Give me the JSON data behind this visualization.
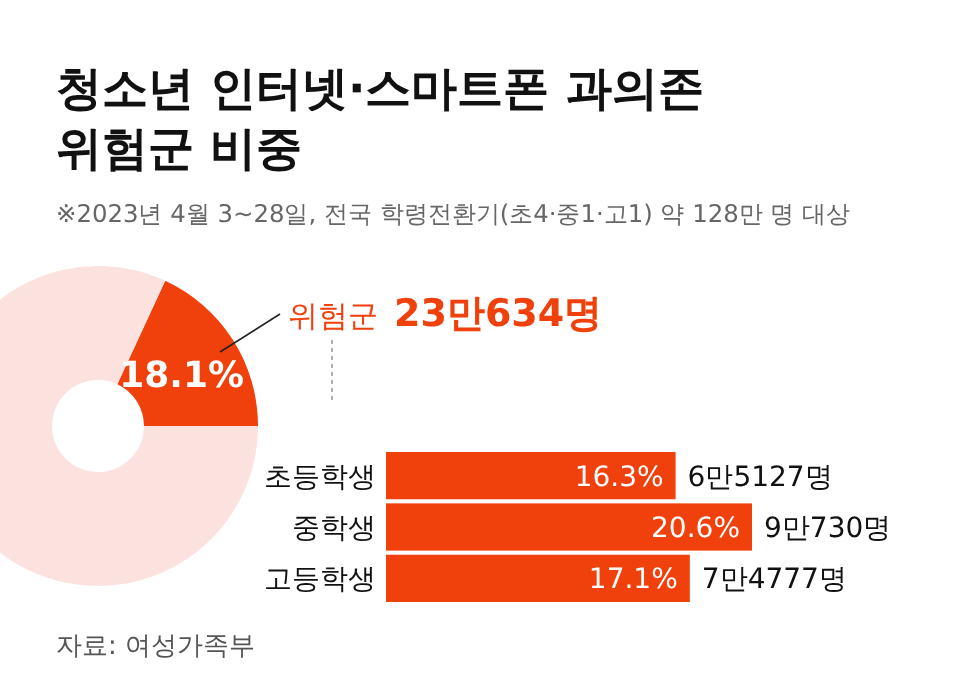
{
  "chart_data": [
    {
      "type": "donut",
      "title": "청소년 인터넷·스마트폰 과의존\n위험군 비중",
      "subtitle": "※2023년 4월 3~28일, 전국 학령전환기(초4·중1·고1) 약 128만 명 대상",
      "categories": [
        "위험군",
        null
      ],
      "values": [
        18.1,
        81.9
      ],
      "colors": [
        "#f0400c",
        "#fbe2df"
      ],
      "value_labels": [
        "18.1%",
        null
      ],
      "annotations": [
        "23만634명"
      ]
    },
    {
      "type": "bar",
      "orientation": "horizontal",
      "categories": [
        "초등학생",
        "중학생",
        "고등학생"
      ],
      "values": [
        16.3,
        20.6,
        17.1
      ],
      "color": "#f0400c",
      "tick_labels": "y",
      "value_labels": [
        "16.3%",
        "20.6%",
        "17.1%"
      ],
      "annotations": [
        {
          "text": "6만5127명",
          "x": 16.3,
          "y": "초등학생"
        },
        {
          "text": "9만730명",
          "x": 20.6,
          "y": "중학생"
        },
        {
          "text": "7만4777명",
          "x": 17.1,
          "y": "고등학생"
        },
        "자료: 여성가족부"
      ]
    }
  ]
}
